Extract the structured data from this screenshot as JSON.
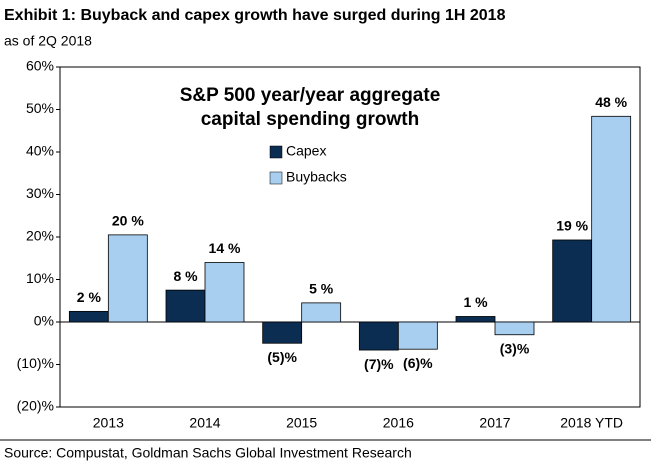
{
  "chart_data": {
    "type": "bar",
    "title": "Exhibit 1: Buyback and capex growth have surged during 1H 2018",
    "subtitle": "as of 2Q 2018",
    "inner_title": [
      "S&P 500 year/year aggregate",
      "capital spending growth"
    ],
    "source": "Source: Compustat, Goldman Sachs Global Investment Research",
    "categories": [
      "2013",
      "2014",
      "2015",
      "2016",
      "2017",
      "2018 YTD"
    ],
    "series": [
      {
        "name": "Capex",
        "color": "#0b2d52",
        "values": [
          2.5,
          7.5,
          -5,
          -6.6,
          1.3,
          19.3
        ],
        "value_labels": [
          "2 %",
          "8 %",
          "(5)%",
          "(7)%",
          "1 %",
          "19 %"
        ]
      },
      {
        "name": "Buybacks",
        "color": "#a8cff0",
        "values": [
          20.5,
          14,
          4.5,
          -6.4,
          -3,
          48.4
        ],
        "value_labels": [
          "20 %",
          "14 %",
          "5 %",
          "(6)%",
          "(3)%",
          "48 %"
        ]
      }
    ],
    "ylim": [
      -20,
      60
    ],
    "yticks": [
      {
        "value": -20,
        "label": "(20)%"
      },
      {
        "value": -10,
        "label": "(10)%"
      },
      {
        "value": 0,
        "label": "0%"
      },
      {
        "value": 10,
        "label": "10%"
      },
      {
        "value": 20,
        "label": "20%"
      },
      {
        "value": 30,
        "label": "30%"
      },
      {
        "value": 40,
        "label": "40%"
      },
      {
        "value": 50,
        "label": "50%"
      },
      {
        "value": 60,
        "label": "60%"
      }
    ],
    "grid": false
  }
}
